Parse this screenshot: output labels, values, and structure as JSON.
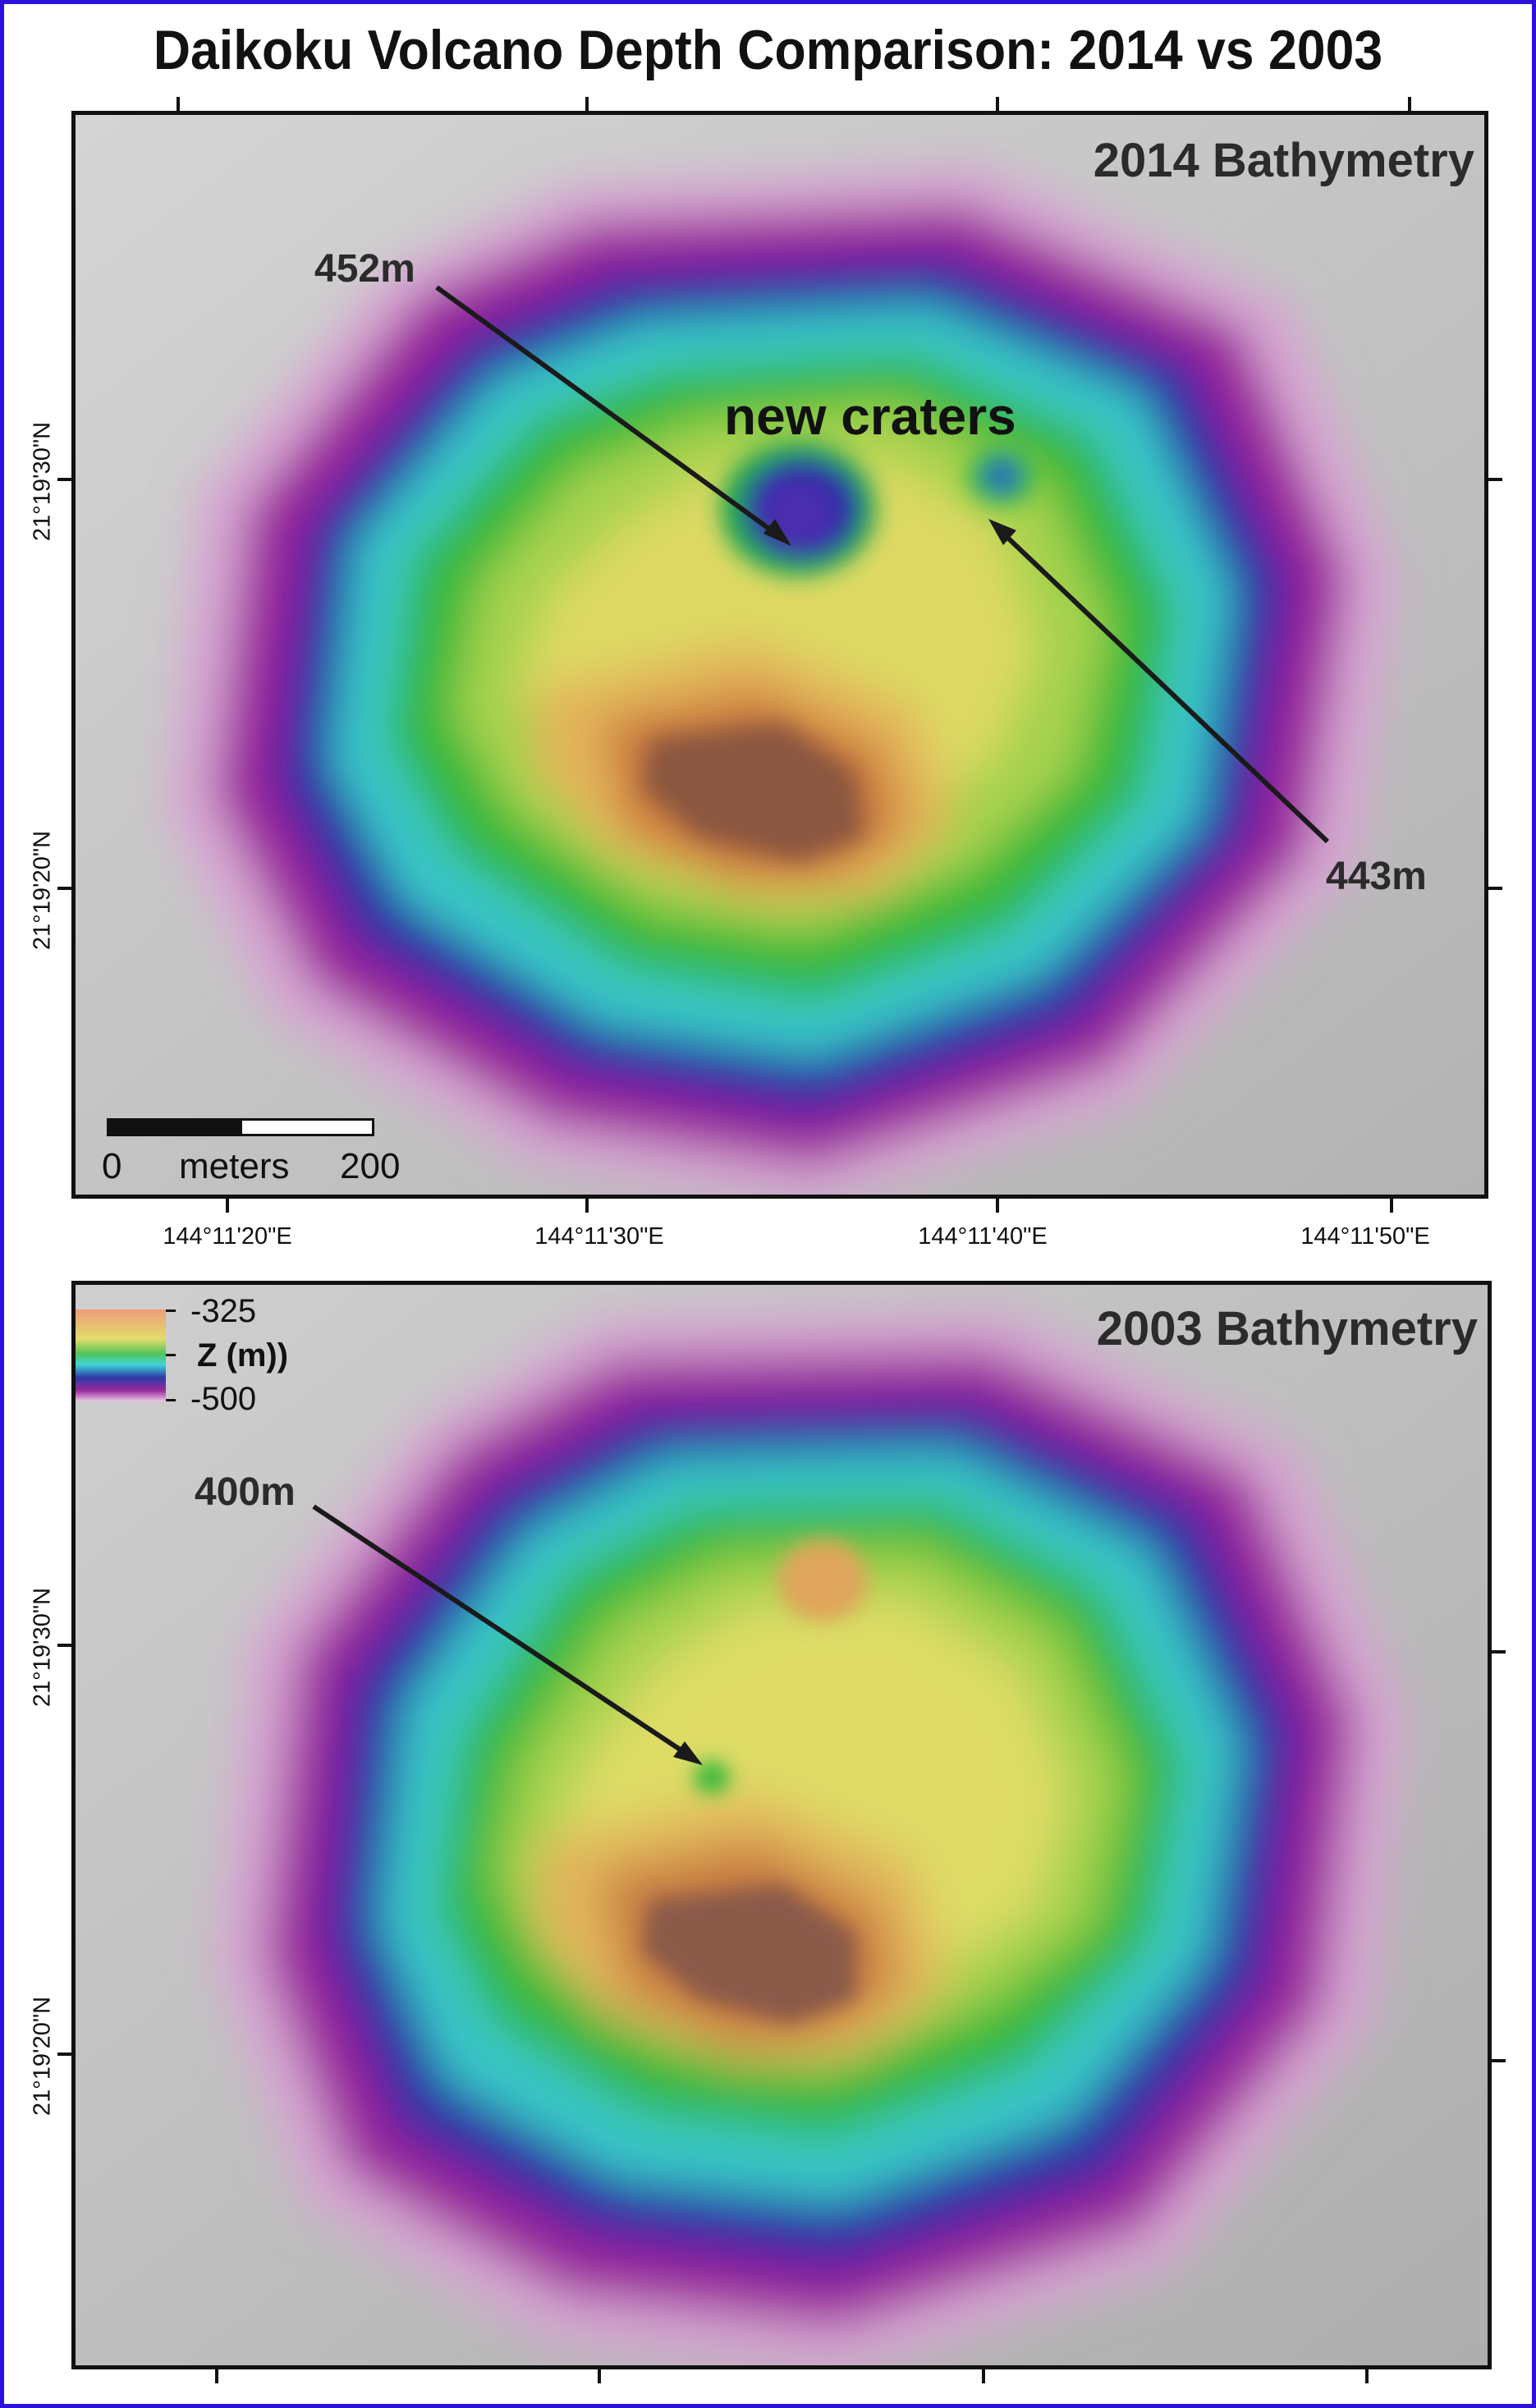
{
  "title": "Daikoku Volcano Depth Comparison: 2014 vs 2003",
  "colors": {
    "frame": "#2a10d8",
    "background_gray": "#c9c9c9",
    "ramp": [
      "#c97a4a",
      "#e6c56a",
      "#dfe06a",
      "#40c040",
      "#3fd4d4",
      "#2828a8",
      "#9b1f9b",
      "#d7a0d4"
    ]
  },
  "top_panel": {
    "label": "2014 Bathymetry",
    "annotations": {
      "crater1_depth": "452m",
      "crater2_depth": "443m",
      "craters_label": "new craters"
    },
    "scalebar": {
      "start": "0",
      "unit": "meters",
      "end": "200"
    },
    "lon_ticks": [
      "144°11'20\"E",
      "144°11'30\"E",
      "144°11'40\"E",
      "144°11'50\"E"
    ],
    "lat_ticks": [
      "21°19'30\"N",
      "21°19'20\"N"
    ]
  },
  "bottom_panel": {
    "label": "2003 Bathymetry",
    "annotations": {
      "vent_depth": "400m"
    },
    "legend": {
      "max": "-325",
      "title": "Z (m))",
      "min": "-500"
    },
    "lat_ticks": [
      "21°19'30\"N",
      "21°19'20\"N"
    ]
  }
}
